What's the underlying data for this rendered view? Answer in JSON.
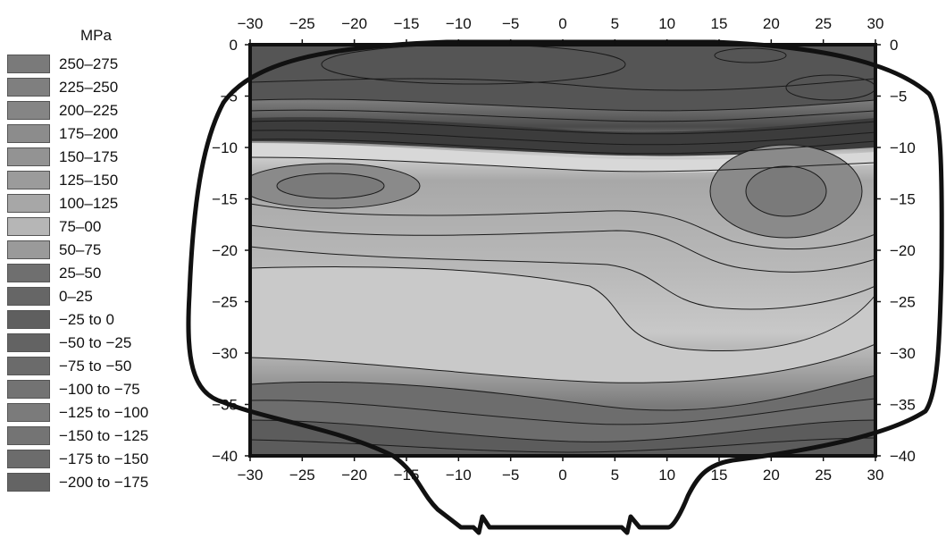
{
  "legend": {
    "title": "MPa",
    "entries": [
      {
        "label": "250–275",
        "color": "#7a7a7a"
      },
      {
        "label": "225–250",
        "color": "#7f7f7f"
      },
      {
        "label": "200–225",
        "color": "#858585"
      },
      {
        "label": "175–200",
        "color": "#8c8c8c"
      },
      {
        "label": "150–175",
        "color": "#939393"
      },
      {
        "label": "125–150",
        "color": "#9b9b9b"
      },
      {
        "label": "100–125",
        "color": "#a7a7a7"
      },
      {
        "label": "75–00",
        "color": "#b6b6b6"
      },
      {
        "label": "50–75",
        "color": "#9a9a9a"
      },
      {
        "label": "25–50",
        "color": "#6f6f6f"
      },
      {
        "label": "0–25",
        "color": "#666666"
      },
      {
        "label": "−25 to 0",
        "color": "#5f5f5f"
      },
      {
        "label": "−50 to −25",
        "color": "#636363"
      },
      {
        "label": "−75 to −50",
        "color": "#6b6b6b"
      },
      {
        "label": "−100 to −75",
        "color": "#737373"
      },
      {
        "label": "−125 to −100",
        "color": "#7b7b7b"
      },
      {
        "label": "−150 to −125",
        "color": "#747474"
      },
      {
        "label": "−175 to −150",
        "color": "#6c6c6c"
      },
      {
        "label": "−200 to −175",
        "color": "#646464"
      }
    ]
  },
  "chart_data": {
    "type": "heatmap",
    "title": "",
    "xlabel": "",
    "ylabel": "",
    "unit": "MPa",
    "xlim": [
      -30,
      30
    ],
    "ylim": [
      -40,
      0
    ],
    "xticks": [
      "−30",
      "−25",
      "−20",
      "−15",
      "−10",
      "−5",
      "0",
      "5",
      "10",
      "15",
      "20",
      "25",
      "30"
    ],
    "yticks": [
      "0",
      "−5",
      "−10",
      "−15",
      "−20",
      "−25",
      "−30",
      "−35",
      "−40"
    ],
    "xtick_values": [
      -30,
      -25,
      -20,
      -15,
      -10,
      -5,
      0,
      5,
      10,
      15,
      20,
      25,
      30
    ],
    "ytick_values": [
      0,
      -5,
      -10,
      -15,
      -20,
      -25,
      -30,
      -35,
      -40
    ],
    "grid": false,
    "legend_position": "left",
    "regions": [
      {
        "band": "−50 to −25",
        "y_range": [
          -5,
          0
        ]
      },
      {
        "band": "−200 to −175",
        "y_range": [
          -10,
          -6
        ]
      },
      {
        "band": "100–125",
        "y_range": [
          -20,
          -11
        ]
      },
      {
        "band": "75–00",
        "y_range": [
          -31,
          -21
        ]
      },
      {
        "band": "50–75",
        "y_range": [
          -33,
          -30
        ]
      },
      {
        "band": "−100 to −75",
        "y_range": [
          -40,
          -34
        ]
      }
    ]
  }
}
